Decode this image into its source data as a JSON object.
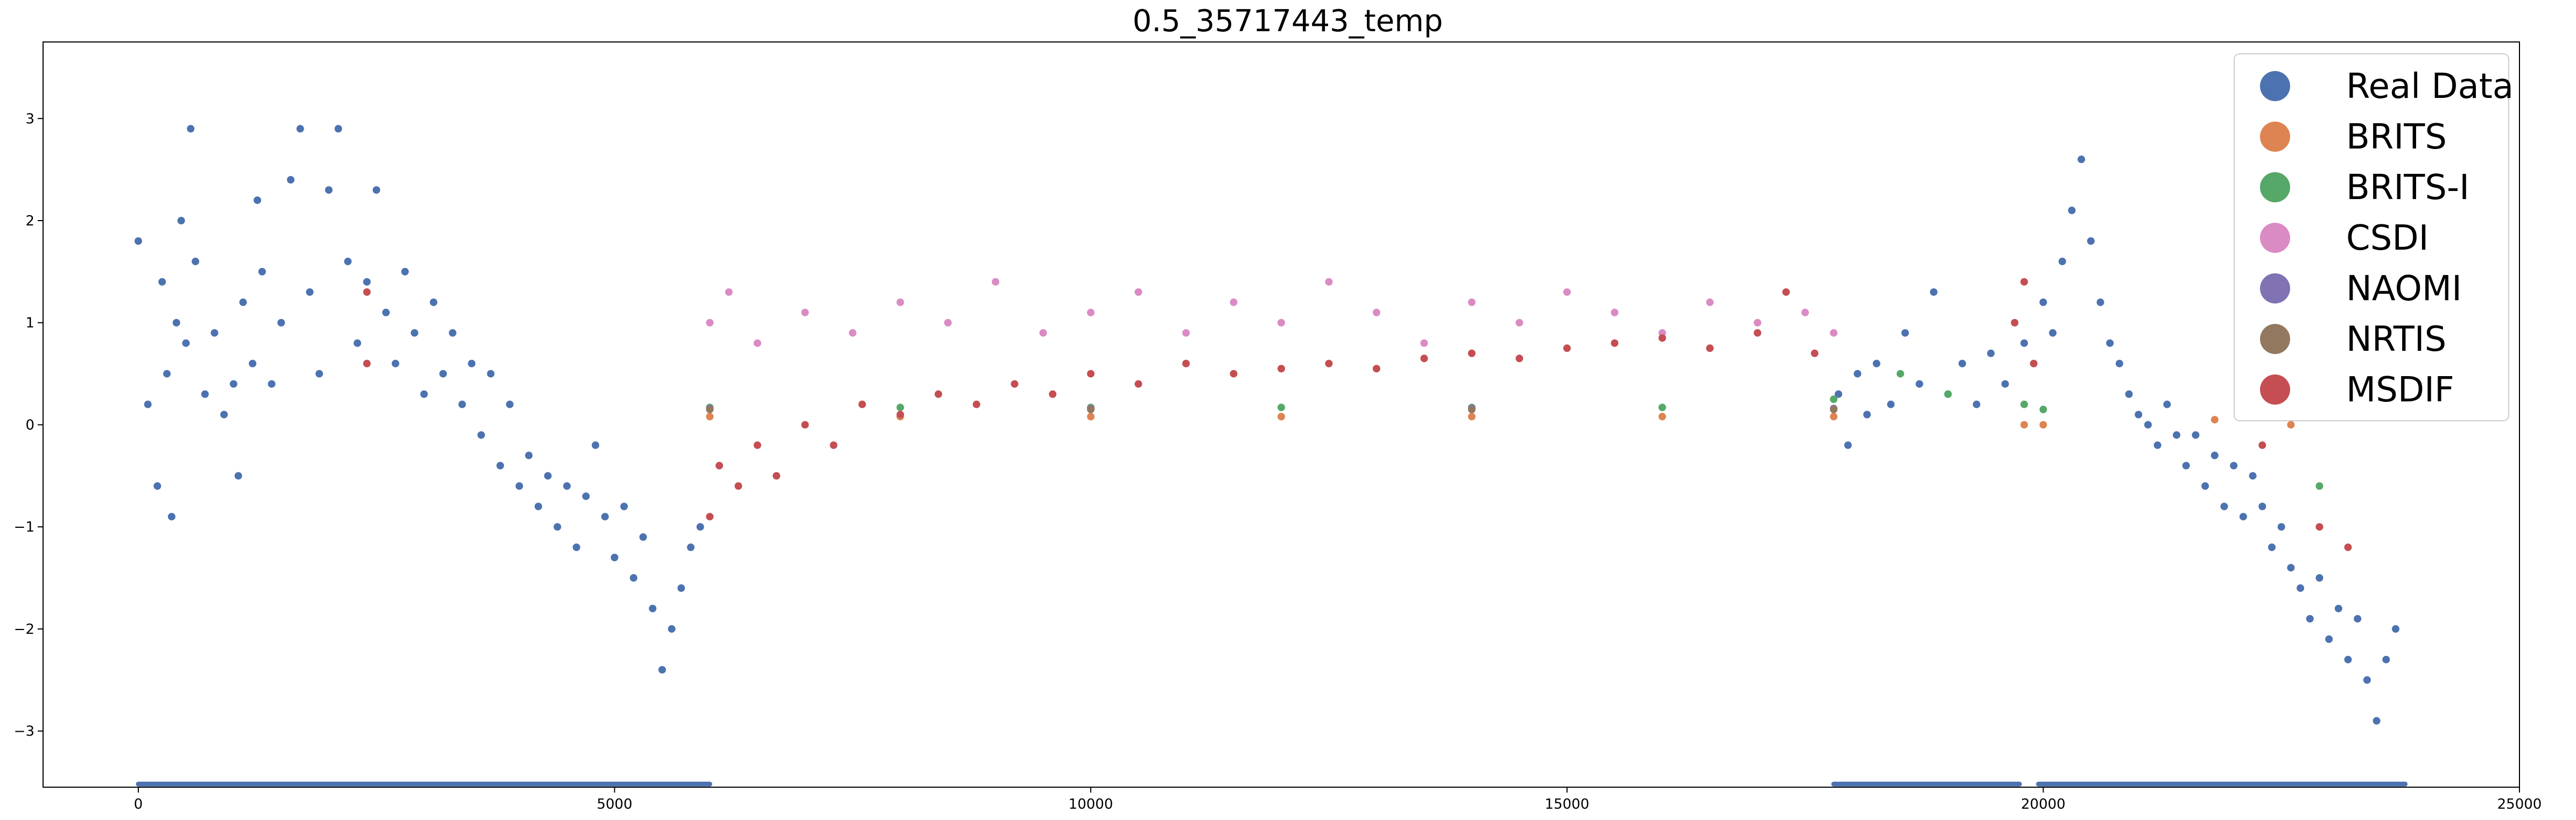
{
  "chart_data": {
    "type": "scatter",
    "title": "0.5_35717443_temp",
    "xlabel": "",
    "ylabel": "",
    "xlim": [
      -1000,
      25000
    ],
    "ylim": [
      -3.55,
      3.75
    ],
    "xticks": [
      0,
      5000,
      10000,
      15000,
      20000,
      25000
    ],
    "xtick_labels": [
      "0",
      "5000",
      "10000",
      "15000",
      "20000",
      "25000"
    ],
    "yticks": [
      -3,
      -2,
      -1,
      0,
      1,
      2,
      3
    ],
    "ytick_labels": [
      "−3",
      "−2",
      "−1",
      "0",
      "1",
      "2",
      "3"
    ],
    "grid": false,
    "legend_position": "top-right",
    "series": [
      {
        "name": "Real Data",
        "color": "#4c72b0",
        "points": [
          [
            0,
            1.8
          ],
          [
            100,
            0.2
          ],
          [
            200,
            -0.6
          ],
          [
            250,
            1.4
          ],
          [
            300,
            0.5
          ],
          [
            350,
            -0.9
          ],
          [
            400,
            1.0
          ],
          [
            450,
            2.0
          ],
          [
            500,
            0.8
          ],
          [
            550,
            2.9
          ],
          [
            600,
            1.6
          ],
          [
            700,
            0.3
          ],
          [
            800,
            0.9
          ],
          [
            900,
            0.1
          ],
          [
            1000,
            0.4
          ],
          [
            1050,
            -0.5
          ],
          [
            1100,
            1.2
          ],
          [
            1200,
            0.6
          ],
          [
            1250,
            2.2
          ],
          [
            1300,
            1.5
          ],
          [
            1400,
            0.4
          ],
          [
            1500,
            1.0
          ],
          [
            1600,
            2.4
          ],
          [
            1700,
            2.9
          ],
          [
            1800,
            1.3
          ],
          [
            1900,
            0.5
          ],
          [
            2000,
            2.3
          ],
          [
            2100,
            2.9
          ],
          [
            2200,
            1.6
          ],
          [
            2300,
            0.8
          ],
          [
            2400,
            1.4
          ],
          [
            2500,
            2.3
          ],
          [
            2600,
            1.1
          ],
          [
            2700,
            0.6
          ],
          [
            2800,
            1.5
          ],
          [
            2900,
            0.9
          ],
          [
            3000,
            0.3
          ],
          [
            3100,
            1.2
          ],
          [
            3200,
            0.5
          ],
          [
            3300,
            0.9
          ],
          [
            3400,
            0.2
          ],
          [
            3500,
            0.6
          ],
          [
            3600,
            -0.1
          ],
          [
            3700,
            0.5
          ],
          [
            3800,
            -0.4
          ],
          [
            3900,
            0.2
          ],
          [
            4000,
            -0.6
          ],
          [
            4100,
            -0.3
          ],
          [
            4200,
            -0.8
          ],
          [
            4300,
            -0.5
          ],
          [
            4400,
            -1.0
          ],
          [
            4500,
            -0.6
          ],
          [
            4600,
            -1.2
          ],
          [
            4700,
            -0.7
          ],
          [
            4800,
            -0.2
          ],
          [
            4900,
            -0.9
          ],
          [
            5000,
            -1.3
          ],
          [
            5100,
            -0.8
          ],
          [
            5200,
            -1.5
          ],
          [
            5300,
            -1.1
          ],
          [
            5400,
            -1.8
          ],
          [
            5500,
            -2.4
          ],
          [
            5600,
            -2.0
          ],
          [
            5700,
            -1.6
          ],
          [
            5800,
            -1.2
          ],
          [
            5900,
            -1.0
          ],
          [
            17850,
            0.3
          ],
          [
            17950,
            -0.2
          ],
          [
            18050,
            0.5
          ],
          [
            18150,
            0.1
          ],
          [
            18250,
            0.6
          ],
          [
            18400,
            0.2
          ],
          [
            18550,
            0.9
          ],
          [
            18700,
            0.4
          ],
          [
            18850,
            1.3
          ],
          [
            19000,
            0.3
          ],
          [
            19150,
            0.6
          ],
          [
            19300,
            0.2
          ],
          [
            19450,
            0.7
          ],
          [
            19600,
            0.4
          ],
          [
            19800,
            0.8
          ],
          [
            20000,
            1.2
          ],
          [
            20100,
            0.9
          ],
          [
            20200,
            1.6
          ],
          [
            20300,
            2.1
          ],
          [
            20400,
            2.6
          ],
          [
            20500,
            1.8
          ],
          [
            20600,
            1.2
          ],
          [
            20700,
            0.8
          ],
          [
            20800,
            0.6
          ],
          [
            20900,
            0.3
          ],
          [
            21000,
            0.1
          ],
          [
            21100,
            0.0
          ],
          [
            21200,
            -0.2
          ],
          [
            21300,
            0.2
          ],
          [
            21400,
            -0.1
          ],
          [
            21500,
            -0.4
          ],
          [
            21600,
            -0.1
          ],
          [
            21700,
            -0.6
          ],
          [
            21800,
            -0.3
          ],
          [
            21900,
            -0.8
          ],
          [
            22000,
            -0.4
          ],
          [
            22100,
            -0.9
          ],
          [
            22200,
            -0.5
          ],
          [
            22300,
            -0.8
          ],
          [
            22400,
            -1.2
          ],
          [
            22500,
            -1.0
          ],
          [
            22600,
            -1.4
          ],
          [
            22700,
            -1.6
          ],
          [
            22800,
            -1.9
          ],
          [
            22900,
            -1.5
          ],
          [
            23000,
            -2.1
          ],
          [
            23100,
            -1.8
          ],
          [
            23200,
            -2.3
          ],
          [
            23300,
            -1.9
          ],
          [
            23400,
            -2.5
          ],
          [
            23500,
            -2.9
          ],
          [
            23600,
            -2.3
          ],
          [
            23700,
            -2.0
          ]
        ]
      },
      {
        "name": "BRITS",
        "color": "#dd8452",
        "points": [
          [
            6000,
            0.08
          ],
          [
            8000,
            0.08
          ],
          [
            10000,
            0.08
          ],
          [
            12000,
            0.08
          ],
          [
            14000,
            0.08
          ],
          [
            16000,
            0.08
          ],
          [
            17800,
            0.08
          ],
          [
            19800,
            0.0
          ],
          [
            20000,
            0.0
          ],
          [
            21800,
            0.05
          ],
          [
            22600,
            0.0
          ]
        ]
      },
      {
        "name": "BRITS-I",
        "color": "#55a868",
        "points": [
          [
            6000,
            0.17
          ],
          [
            8000,
            0.17
          ],
          [
            10000,
            0.17
          ],
          [
            12000,
            0.17
          ],
          [
            14000,
            0.17
          ],
          [
            16000,
            0.17
          ],
          [
            17800,
            0.25
          ],
          [
            18500,
            0.5
          ],
          [
            19000,
            0.3
          ],
          [
            19800,
            0.2
          ],
          [
            20000,
            0.15
          ],
          [
            22900,
            -0.6
          ]
        ]
      },
      {
        "name": "CSDI",
        "color": "#da8bc3",
        "points": [
          [
            6000,
            1.0
          ],
          [
            6200,
            1.3
          ],
          [
            6500,
            0.8
          ],
          [
            7000,
            1.1
          ],
          [
            7500,
            0.9
          ],
          [
            8000,
            1.2
          ],
          [
            8500,
            1.0
          ],
          [
            9000,
            1.4
          ],
          [
            9500,
            0.9
          ],
          [
            10000,
            1.1
          ],
          [
            10500,
            1.3
          ],
          [
            11000,
            0.9
          ],
          [
            11500,
            1.2
          ],
          [
            12000,
            1.0
          ],
          [
            12500,
            1.4
          ],
          [
            13000,
            1.1
          ],
          [
            13500,
            0.8
          ],
          [
            14000,
            1.2
          ],
          [
            14500,
            1.0
          ],
          [
            15000,
            1.3
          ],
          [
            15500,
            1.1
          ],
          [
            16000,
            0.9
          ],
          [
            16500,
            1.2
          ],
          [
            17000,
            1.0
          ],
          [
            17500,
            1.1
          ],
          [
            17800,
            0.9
          ]
        ]
      },
      {
        "name": "NAOMI",
        "color": "#8172b3",
        "points": [
          [
            6000,
            0.16
          ],
          [
            10000,
            0.16
          ],
          [
            14000,
            0.16
          ],
          [
            17800,
            0.16
          ]
        ]
      },
      {
        "name": "NRTIS",
        "color": "#937860",
        "points": [
          [
            6000,
            0.15
          ],
          [
            10000,
            0.15
          ],
          [
            14000,
            0.15
          ],
          [
            17800,
            0.15
          ]
        ]
      },
      {
        "name": "MSDIF",
        "color": "#c44e52",
        "points": [
          [
            2400,
            1.3
          ],
          [
            2400,
            0.6
          ],
          [
            6000,
            -0.9
          ],
          [
            6100,
            -0.4
          ],
          [
            6300,
            -0.6
          ],
          [
            6500,
            -0.2
          ],
          [
            6700,
            -0.5
          ],
          [
            7000,
            0.0
          ],
          [
            7300,
            -0.2
          ],
          [
            7600,
            0.2
          ],
          [
            8000,
            0.1
          ],
          [
            8400,
            0.3
          ],
          [
            8800,
            0.2
          ],
          [
            9200,
            0.4
          ],
          [
            9600,
            0.3
          ],
          [
            10000,
            0.5
          ],
          [
            10500,
            0.4
          ],
          [
            11000,
            0.6
          ],
          [
            11500,
            0.5
          ],
          [
            12000,
            0.55
          ],
          [
            12500,
            0.6
          ],
          [
            13000,
            0.55
          ],
          [
            13500,
            0.65
          ],
          [
            14000,
            0.7
          ],
          [
            14500,
            0.65
          ],
          [
            15000,
            0.75
          ],
          [
            15500,
            0.8
          ],
          [
            16000,
            0.85
          ],
          [
            16500,
            0.75
          ],
          [
            17000,
            0.9
          ],
          [
            17300,
            1.3
          ],
          [
            17600,
            0.7
          ],
          [
            19700,
            1.0
          ],
          [
            19800,
            1.4
          ],
          [
            19900,
            0.6
          ],
          [
            22300,
            -0.2
          ],
          [
            22900,
            -1.0
          ],
          [
            23200,
            -1.2
          ]
        ]
      }
    ],
    "missing_ranges": [
      [
        0,
        6000
      ],
      [
        17800,
        19750
      ],
      [
        19950,
        23800
      ]
    ],
    "missing_marker_y": -3.52
  }
}
